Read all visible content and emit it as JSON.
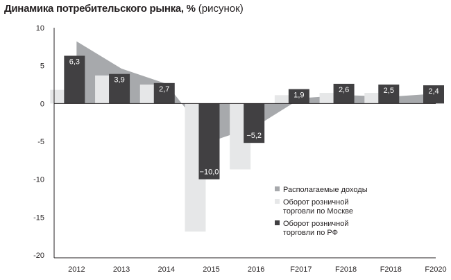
{
  "title": {
    "bold": "Динамика потребительского рынка, %",
    "suffix": "(рисунок)"
  },
  "colors": {
    "disposable_income": "#a7a9ac",
    "moscow_retail": "#e6e7e8",
    "rf_retail": "#414042",
    "axis": "#231f20"
  },
  "chart_data": {
    "type": "bar",
    "title": "Динамика потребительского рынка, % (рисунок)",
    "xlabel": "",
    "ylabel": "",
    "categories": [
      "2012",
      "2013",
      "2014",
      "2015",
      "2016",
      "F2017",
      "F2018",
      "F2018",
      "F2020"
    ],
    "ylim": [
      -20,
      10
    ],
    "yticks": [
      10,
      5,
      0,
      -5,
      -10,
      -15,
      -20
    ],
    "legend_position": "bottom-right",
    "series": [
      {
        "name": "Располагаемые доходы",
        "type": "area",
        "values": [
          8.2,
          4.6,
          2.6,
          -5.0,
          -3.0,
          0.7,
          1.1,
          0.9,
          1.3
        ]
      },
      {
        "name": "Оборот розничной торговли по Москве",
        "type": "bar",
        "values": [
          1.8,
          3.7,
          2.5,
          -16.9,
          -8.7,
          1.1,
          1.4,
          1.4,
          null
        ]
      },
      {
        "name": "Оборот розничной торговли по РФ",
        "type": "bar",
        "values": [
          6.3,
          3.9,
          2.7,
          -10.0,
          -5.2,
          1.9,
          2.6,
          2.5,
          2.4
        ],
        "labels": [
          "6,3",
          "3,9",
          "2,7",
          "−10,0",
          "−5,2",
          "1,9",
          "2,6",
          "2,5",
          "2,4"
        ]
      }
    ]
  }
}
